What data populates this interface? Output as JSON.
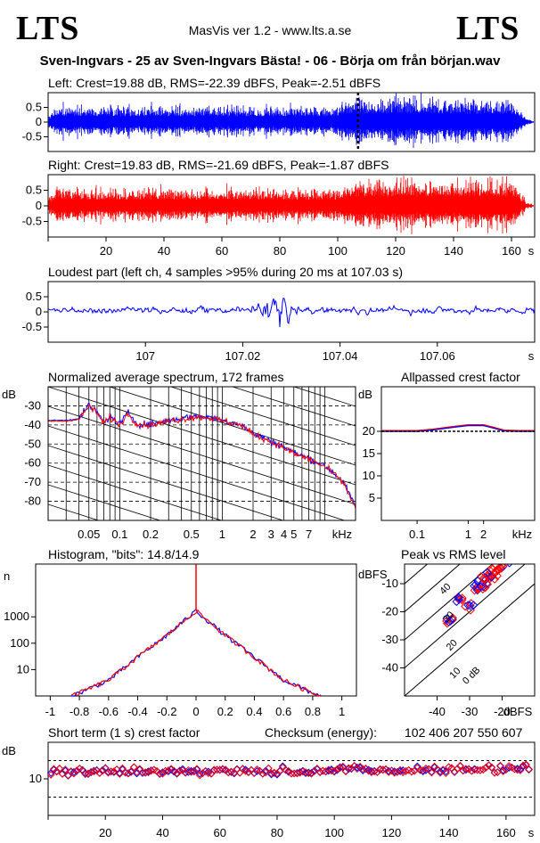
{
  "header": {
    "logo_left": "LTS",
    "logo_right": "LTS",
    "app_title": "MasVis ver 1.2 - www.lts.a.se",
    "file_title": "Sven-Ingvars - 25 av Sven-Ingvars Bästa! - 06 - Börja om från början.wav"
  },
  "colors": {
    "left": "#0000ff",
    "right": "#ff0000",
    "grid": "#000000"
  },
  "chart_data": [
    {
      "id": "left-waveform",
      "type": "area",
      "title": "Left: Crest=19.88 dB, RMS=-22.39 dBFS, Peak=-2.51 dBFS",
      "ylim": [
        -1,
        1
      ],
      "yticks": [
        "0.5",
        "0",
        "-0.5"
      ],
      "xlim": [
        0,
        168
      ],
      "series": [
        {
          "envelope_t": [
            0,
            3,
            10,
            60,
            100,
            104,
            160,
            165,
            168
          ],
          "envelope_amp": [
            0.25,
            0.6,
            0.55,
            0.55,
            0.55,
            0.8,
            0.8,
            0.15,
            0.02
          ]
        }
      ],
      "marker_time": 107.03
    },
    {
      "id": "right-waveform",
      "type": "area",
      "title": "Right: Crest=19.83 dB, RMS=-21.69 dBFS, Peak=-1.87 dBFS",
      "ylim": [
        -1,
        1
      ],
      "yticks": [
        "0.5",
        "0",
        "-0.5"
      ],
      "xlim": [
        0,
        168
      ],
      "xticks": [
        "20",
        "40",
        "60",
        "80",
        "100",
        "120",
        "140",
        "160"
      ],
      "xunit": "s",
      "series": [
        {
          "envelope_t": [
            0,
            3,
            10,
            60,
            100,
            104,
            160,
            165,
            168
          ],
          "envelope_amp": [
            0.25,
            0.6,
            0.55,
            0.55,
            0.55,
            0.85,
            0.85,
            0.15,
            0.02
          ]
        }
      ]
    },
    {
      "id": "loudest-part",
      "type": "line",
      "title": "Loudest part (left  ch, 4 samples >95% during 20 ms at 107.03 s)",
      "ylim": [
        -1,
        1
      ],
      "yticks": [
        "0.5",
        "0",
        "-0.5"
      ],
      "xlim": [
        106.98,
        107.08
      ],
      "xticks": [
        "107",
        "107.02",
        "107.04",
        "107.06"
      ],
      "xunit": "s"
    },
    {
      "id": "spectrum",
      "type": "line",
      "title": "Normalized average spectrum, 172 frames",
      "ylabel": "dB",
      "ylim": [
        -90,
        -20
      ],
      "yticks": [
        "-30",
        "-40",
        "-50",
        "-60",
        "-70",
        "-80"
      ],
      "xlim": [
        0.02,
        20
      ],
      "xscale": "log",
      "xunit": "kHz",
      "xticks": [
        "0.05",
        "0.1",
        "0.2",
        "0.5",
        "1",
        "2",
        "3",
        "4",
        "5",
        "7"
      ],
      "series": [
        {
          "x": [
            0.02,
            0.03,
            0.04,
            0.05,
            0.06,
            0.07,
            0.08,
            0.1,
            0.12,
            0.15,
            0.2,
            0.3,
            0.5,
            0.7,
            1,
            1.5,
            2,
            3,
            4,
            5,
            7,
            10,
            15,
            20
          ],
          "y": [
            -38,
            -38,
            -37,
            -30,
            -34,
            -39,
            -36,
            -40,
            -34,
            -40,
            -40,
            -38,
            -36,
            -36,
            -38,
            -40,
            -45,
            -49,
            -52,
            -55,
            -58,
            -62,
            -70,
            -84
          ]
        }
      ]
    },
    {
      "id": "allpass-crest",
      "type": "line",
      "title": "Allpassed crest factor",
      "ylabel": "dB",
      "ylim": [
        0,
        30
      ],
      "yticks": [
        "20",
        "15",
        "10",
        "5"
      ],
      "xlim": [
        0.02,
        20
      ],
      "xscale": "log",
      "xunit": "kHz",
      "xticks": [
        "0.1",
        "1",
        "2"
      ],
      "series": [
        {
          "x": [
            0.02,
            0.1,
            0.2,
            0.5,
            1,
            2,
            3,
            5,
            10,
            20
          ],
          "y": [
            20,
            20,
            20.3,
            20.9,
            21.3,
            21.3,
            20.8,
            20.1,
            20,
            20
          ]
        }
      ],
      "reference": 20
    },
    {
      "id": "histogram",
      "type": "line",
      "title": "Histogram, \"bits\": 14.8/14.9",
      "ylabel": "n",
      "yscale": "log",
      "ylim": [
        1,
        100000
      ],
      "yticks": [
        "1000",
        "100",
        "10"
      ],
      "xlim": [
        -1.1,
        1.1
      ],
      "xticks": [
        "-1",
        "-0.8",
        "-0.6",
        "-0.4",
        "-0.2",
        "0",
        "0.2",
        "0.4",
        "0.6",
        "0.8",
        "1"
      ],
      "series": [
        {
          "x": [
            -0.85,
            -0.6,
            -0.4,
            -0.2,
            0,
            0.2,
            0.4,
            0.6,
            0.85
          ],
          "y": [
            1,
            4,
            30,
            200,
            1700,
            200,
            30,
            4,
            1
          ]
        }
      ]
    },
    {
      "id": "peak-vs-rms",
      "type": "scatter",
      "title": "Peak vs RMS level",
      "ylabel": "dBFS",
      "ylim": [
        -50,
        -3
      ],
      "yticks": [
        "-10",
        "-20",
        "-30",
        "-40"
      ],
      "xlim": [
        -50,
        -10
      ],
      "xticks": [
        "-40",
        "-30",
        "-20"
      ],
      "xlabel": "dBFS",
      "diagonal_labels": [
        "40",
        "30",
        "20",
        "10",
        "0 dB"
      ],
      "series": [
        {
          "x": [
            -36,
            -33,
            -30,
            -28,
            -27,
            -26,
            -25,
            -24,
            -23,
            -22,
            -21,
            -20,
            -19
          ],
          "y": [
            -23,
            -15,
            -18,
            -12,
            -11,
            -9,
            -10,
            -8,
            -6,
            -7,
            -5,
            -4,
            -3
          ]
        }
      ]
    },
    {
      "id": "short-term-crest",
      "type": "scatter",
      "title": "Short term (1 s) crest factor",
      "checksum_label": "Checksum (energy):",
      "checksum": "102 406 207 550 607",
      "ylabel": "dB",
      "ylim": [
        0,
        20
      ],
      "yticks": [
        "10"
      ],
      "xlim": [
        0,
        170
      ],
      "xticks": [
        "20",
        "40",
        "60",
        "80",
        "100",
        "120",
        "140",
        "160"
      ],
      "xunit": "s",
      "reference_lines": [
        5,
        15
      ],
      "mean": 12
    }
  ]
}
